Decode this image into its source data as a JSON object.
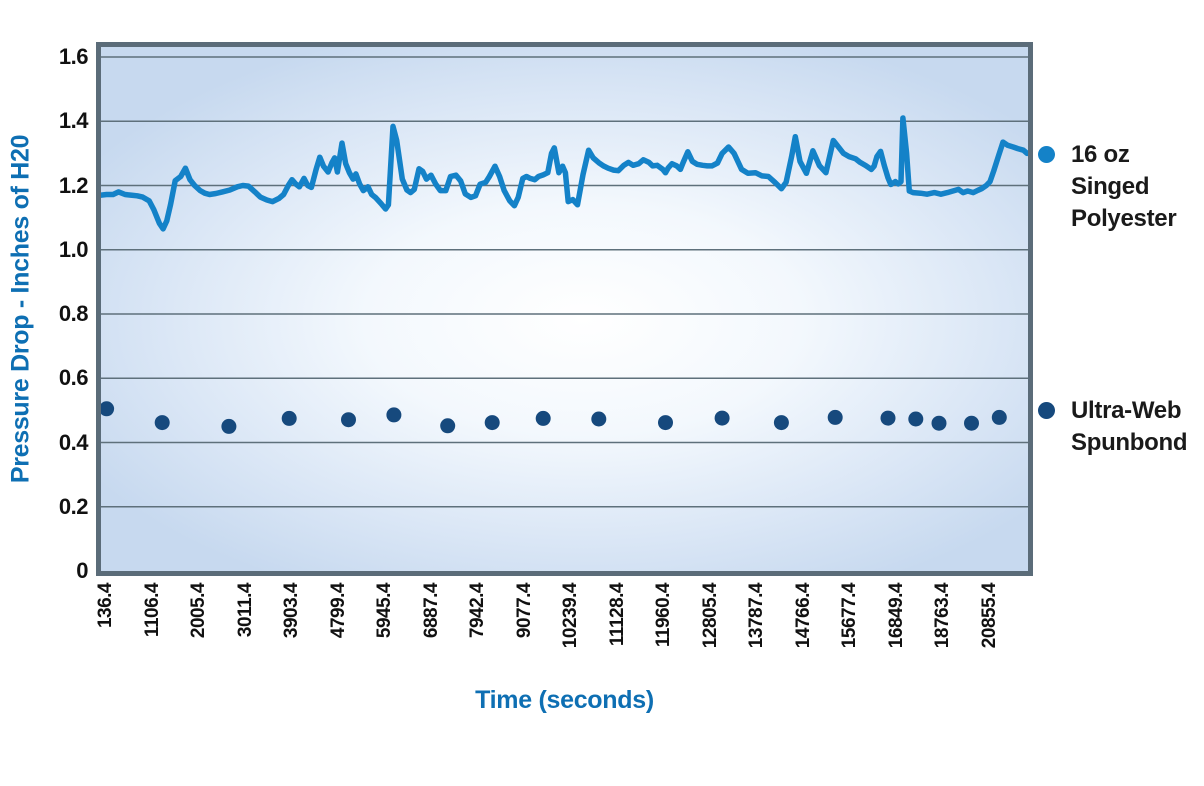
{
  "chart_data": {
    "type": "line+scatter",
    "xlabel": "Time (seconds)",
    "ylabel": "Pressure Drop - Inches of H20",
    "ylim": [
      0,
      1.6
    ],
    "ytick_labels": [
      "0",
      "0.2",
      "0.4",
      "0.6",
      "0.8",
      "1.0",
      "1.2",
      "1.4",
      "1.6"
    ],
    "xtick_labels": [
      "136.4",
      "1106.4",
      "2005.4",
      "3011.4",
      "3903.4",
      "4799.4",
      "5945.4",
      "6887.4",
      "7942.4",
      "9077.4",
      "10239.4",
      "11128.4",
      "11960.4",
      "12805.4",
      "13787.4",
      "14766.4",
      "15677.4",
      "16849.4",
      "18763.4",
      "20855.4"
    ],
    "grid": "horizontal",
    "legend_position": "right",
    "x_unit_note": "x stored as fraction 0-1 along the time axis",
    "series": [
      {
        "name": "16 oz Singed Polyester",
        "legend_label_lines": [
          "16 oz",
          "Singed",
          "Polyester"
        ],
        "type": "line",
        "color": "#1482c8",
        "points": [
          [
            0,
            1.17
          ],
          [
            0.006,
            1.172
          ],
          [
            0.013,
            1.172
          ],
          [
            0.019,
            1.18
          ],
          [
            0.026,
            1.172
          ],
          [
            0.032,
            1.17
          ],
          [
            0.039,
            1.168
          ],
          [
            0.045,
            1.164
          ],
          [
            0.052,
            1.152
          ],
          [
            0.057,
            1.125
          ],
          [
            0.063,
            1.082
          ],
          [
            0.067,
            1.065
          ],
          [
            0.071,
            1.09
          ],
          [
            0.075,
            1.14
          ],
          [
            0.08,
            1.215
          ],
          [
            0.086,
            1.228
          ],
          [
            0.091,
            1.254
          ],
          [
            0.096,
            1.218
          ],
          [
            0.101,
            1.2
          ],
          [
            0.107,
            1.184
          ],
          [
            0.112,
            1.176
          ],
          [
            0.117,
            1.172
          ],
          [
            0.124,
            1.175
          ],
          [
            0.131,
            1.18
          ],
          [
            0.139,
            1.186
          ],
          [
            0.147,
            1.196
          ],
          [
            0.153,
            1.2
          ],
          [
            0.159,
            1.198
          ],
          [
            0.166,
            1.18
          ],
          [
            0.172,
            1.164
          ],
          [
            0.179,
            1.155
          ],
          [
            0.185,
            1.15
          ],
          [
            0.192,
            1.16
          ],
          [
            0.197,
            1.172
          ],
          [
            0.202,
            1.2
          ],
          [
            0.206,
            1.218
          ],
          [
            0.21,
            1.205
          ],
          [
            0.214,
            1.196
          ],
          [
            0.219,
            1.222
          ],
          [
            0.223,
            1.2
          ],
          [
            0.227,
            1.194
          ],
          [
            0.232,
            1.25
          ],
          [
            0.236,
            1.288
          ],
          [
            0.24,
            1.26
          ],
          [
            0.245,
            1.242
          ],
          [
            0.249,
            1.27
          ],
          [
            0.252,
            1.286
          ],
          [
            0.255,
            1.242
          ],
          [
            0.26,
            1.332
          ],
          [
            0.264,
            1.268
          ],
          [
            0.268,
            1.24
          ],
          [
            0.272,
            1.22
          ],
          [
            0.275,
            1.236
          ],
          [
            0.279,
            1.205
          ],
          [
            0.283,
            1.184
          ],
          [
            0.288,
            1.196
          ],
          [
            0.292,
            1.172
          ],
          [
            0.296,
            1.163
          ],
          [
            0.302,
            1.144
          ],
          [
            0.307,
            1.127
          ],
          [
            0.31,
            1.14
          ],
          [
            0.315,
            1.384
          ],
          [
            0.319,
            1.34
          ],
          [
            0.322,
            1.28
          ],
          [
            0.325,
            1.22
          ],
          [
            0.33,
            1.186
          ],
          [
            0.334,
            1.178
          ],
          [
            0.338,
            1.188
          ],
          [
            0.343,
            1.252
          ],
          [
            0.347,
            1.244
          ],
          [
            0.351,
            1.22
          ],
          [
            0.356,
            1.232
          ],
          [
            0.361,
            1.205
          ],
          [
            0.366,
            1.184
          ],
          [
            0.372,
            1.184
          ],
          [
            0.377,
            1.228
          ],
          [
            0.383,
            1.232
          ],
          [
            0.388,
            1.214
          ],
          [
            0.393,
            1.174
          ],
          [
            0.399,
            1.163
          ],
          [
            0.404,
            1.168
          ],
          [
            0.409,
            1.204
          ],
          [
            0.415,
            1.21
          ],
          [
            0.419,
            1.228
          ],
          [
            0.425,
            1.26
          ],
          [
            0.43,
            1.228
          ],
          [
            0.435,
            1.184
          ],
          [
            0.441,
            1.152
          ],
          [
            0.446,
            1.137
          ],
          [
            0.45,
            1.163
          ],
          [
            0.455,
            1.222
          ],
          [
            0.459,
            1.228
          ],
          [
            0.463,
            1.222
          ],
          [
            0.468,
            1.218
          ],
          [
            0.472,
            1.228
          ],
          [
            0.477,
            1.233
          ],
          [
            0.482,
            1.24
          ],
          [
            0.486,
            1.3
          ],
          [
            0.489,
            1.317
          ],
          [
            0.494,
            1.24
          ],
          [
            0.498,
            1.26
          ],
          [
            0.501,
            1.24
          ],
          [
            0.504,
            1.15
          ],
          [
            0.509,
            1.156
          ],
          [
            0.514,
            1.14
          ],
          [
            0.52,
            1.234
          ],
          [
            0.526,
            1.31
          ],
          [
            0.531,
            1.286
          ],
          [
            0.537,
            1.271
          ],
          [
            0.542,
            1.261
          ],
          [
            0.547,
            1.254
          ],
          [
            0.553,
            1.248
          ],
          [
            0.558,
            1.246
          ],
          [
            0.564,
            1.263
          ],
          [
            0.569,
            1.272
          ],
          [
            0.574,
            1.263
          ],
          [
            0.58,
            1.268
          ],
          [
            0.585,
            1.28
          ],
          [
            0.591,
            1.272
          ],
          [
            0.595,
            1.261
          ],
          [
            0.6,
            1.263
          ],
          [
            0.606,
            1.25
          ],
          [
            0.609,
            1.24
          ],
          [
            0.612,
            1.255
          ],
          [
            0.616,
            1.268
          ],
          [
            0.621,
            1.261
          ],
          [
            0.625,
            1.25
          ],
          [
            0.628,
            1.272
          ],
          [
            0.633,
            1.305
          ],
          [
            0.638,
            1.275
          ],
          [
            0.643,
            1.266
          ],
          [
            0.649,
            1.263
          ],
          [
            0.654,
            1.261
          ],
          [
            0.659,
            1.261
          ],
          [
            0.665,
            1.27
          ],
          [
            0.67,
            1.3
          ],
          [
            0.677,
            1.32
          ],
          [
            0.683,
            1.3
          ],
          [
            0.691,
            1.25
          ],
          [
            0.698,
            1.238
          ],
          [
            0.706,
            1.24
          ],
          [
            0.713,
            1.23
          ],
          [
            0.72,
            1.228
          ],
          [
            0.727,
            1.21
          ],
          [
            0.734,
            1.19
          ],
          [
            0.739,
            1.21
          ],
          [
            0.745,
            1.29
          ],
          [
            0.749,
            1.352
          ],
          [
            0.754,
            1.275
          ],
          [
            0.761,
            1.238
          ],
          [
            0.768,
            1.308
          ],
          [
            0.775,
            1.262
          ],
          [
            0.782,
            1.24
          ],
          [
            0.79,
            1.34
          ],
          [
            0.796,
            1.318
          ],
          [
            0.801,
            1.3
          ],
          [
            0.807,
            1.29
          ],
          [
            0.814,
            1.283
          ],
          [
            0.819,
            1.272
          ],
          [
            0.825,
            1.262
          ],
          [
            0.831,
            1.25
          ],
          [
            0.834,
            1.26
          ],
          [
            0.837,
            1.29
          ],
          [
            0.841,
            1.306
          ],
          [
            0.845,
            1.262
          ],
          [
            0.849,
            1.224
          ],
          [
            0.852,
            1.203
          ],
          [
            0.857,
            1.212
          ],
          [
            0.86,
            1.205
          ],
          [
            0.863,
            1.212
          ],
          [
            0.865,
            1.41
          ],
          [
            0.869,
            1.3
          ],
          [
            0.872,
            1.183
          ],
          [
            0.876,
            1.178
          ],
          [
            0.884,
            1.176
          ],
          [
            0.891,
            1.173
          ],
          [
            0.899,
            1.178
          ],
          [
            0.906,
            1.173
          ],
          [
            0.913,
            1.178
          ],
          [
            0.919,
            1.183
          ],
          [
            0.925,
            1.188
          ],
          [
            0.93,
            1.178
          ],
          [
            0.935,
            1.183
          ],
          [
            0.941,
            1.178
          ],
          [
            0.946,
            1.185
          ],
          [
            0.95,
            1.19
          ],
          [
            0.955,
            1.2
          ],
          [
            0.959,
            1.212
          ],
          [
            0.963,
            1.245
          ],
          [
            0.968,
            1.29
          ],
          [
            0.973,
            1.335
          ],
          [
            0.978,
            1.325
          ],
          [
            0.984,
            1.32
          ],
          [
            0.989,
            1.315
          ],
          [
            0.995,
            1.31
          ],
          [
            0.999,
            1.3
          ]
        ]
      },
      {
        "name": "Ultra-Web Spunbond",
        "legend_label_lines": [
          "Ultra-Web",
          "Spunbond"
        ],
        "type": "scatter",
        "color": "#16497d",
        "points": [
          [
            0.006,
            0.505
          ],
          [
            0.066,
            0.462
          ],
          [
            0.138,
            0.45
          ],
          [
            0.203,
            0.475
          ],
          [
            0.267,
            0.471
          ],
          [
            0.316,
            0.486
          ],
          [
            0.374,
            0.452
          ],
          [
            0.422,
            0.462
          ],
          [
            0.477,
            0.475
          ],
          [
            0.537,
            0.473
          ],
          [
            0.609,
            0.462
          ],
          [
            0.67,
            0.476
          ],
          [
            0.734,
            0.462
          ],
          [
            0.792,
            0.478
          ],
          [
            0.849,
            0.476
          ],
          [
            0.879,
            0.473
          ],
          [
            0.904,
            0.46
          ],
          [
            0.939,
            0.46
          ],
          [
            0.969,
            0.478
          ]
        ]
      }
    ],
    "colors": {
      "axis_title": "#0e6fb3",
      "tick_text": "#111111",
      "plot_border": "#5b6c79",
      "gridline": "#5e707b",
      "plot_bg_edge": "#c7d9ef",
      "plot_bg_center": "#ffffff"
    }
  }
}
